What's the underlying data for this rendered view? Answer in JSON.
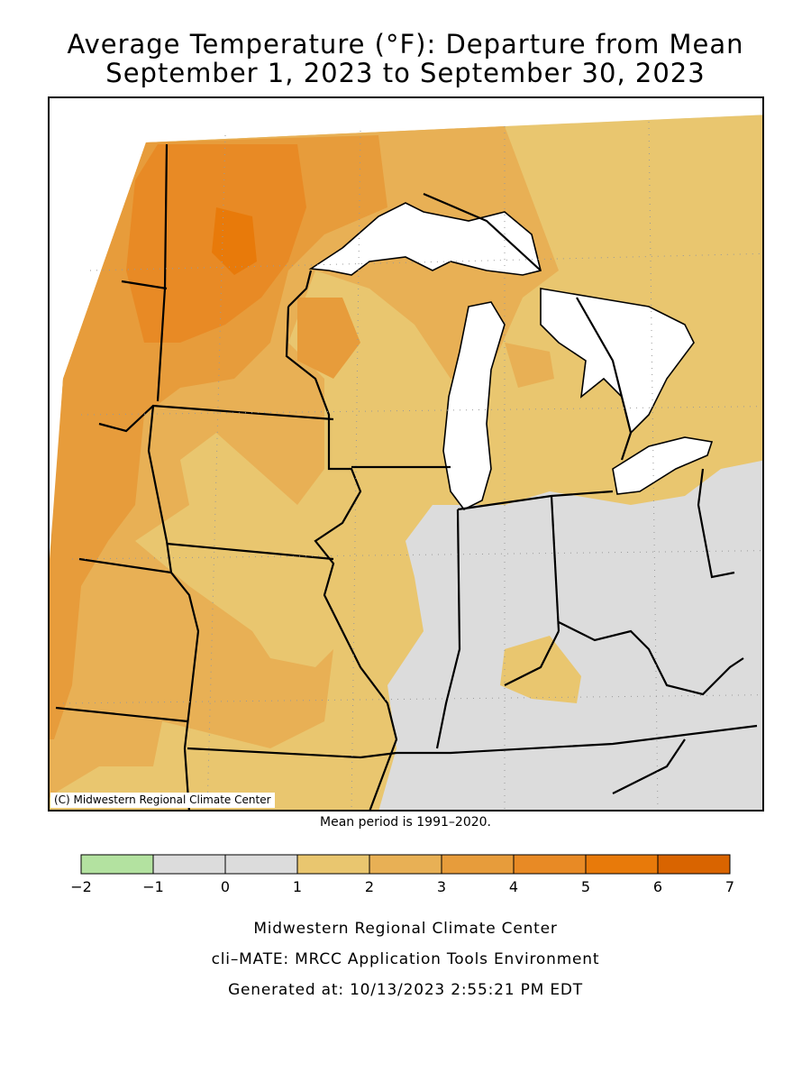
{
  "title_line1": "Average Temperature (°F): Departure from Mean",
  "title_line2": "September 1, 2023 to September 30, 2023",
  "copyright": "(C) Midwestern Regional Climate Center",
  "mean_period": "Mean period is 1991–2020.",
  "legend": {
    "ticks": [
      "−2",
      "−1",
      "0",
      "1",
      "2",
      "3",
      "4",
      "5",
      "6",
      "7"
    ],
    "colors": [
      "#b3e2a0",
      "#dcdcdc",
      "#dcdcdc",
      "#e9c66f",
      "#e8b055",
      "#e79c3b",
      "#e88a25",
      "#e87a0a",
      "#d96400"
    ]
  },
  "footer": {
    "line1": "Midwestern Regional Climate Center",
    "line2": "cli–MATE: MRCC Application Tools Environment",
    "line3": "Generated at: 10/13/2023 2:55:21 PM EDT"
  },
  "map_colors": {
    "lake": "#ffffff",
    "gray": "#dcdcdc",
    "c1_2": "#e9c66f",
    "c2_3": "#e8b055",
    "c3_4": "#e79c3b",
    "c4_5": "#e88a25",
    "c5_6": "#e87a0a"
  }
}
